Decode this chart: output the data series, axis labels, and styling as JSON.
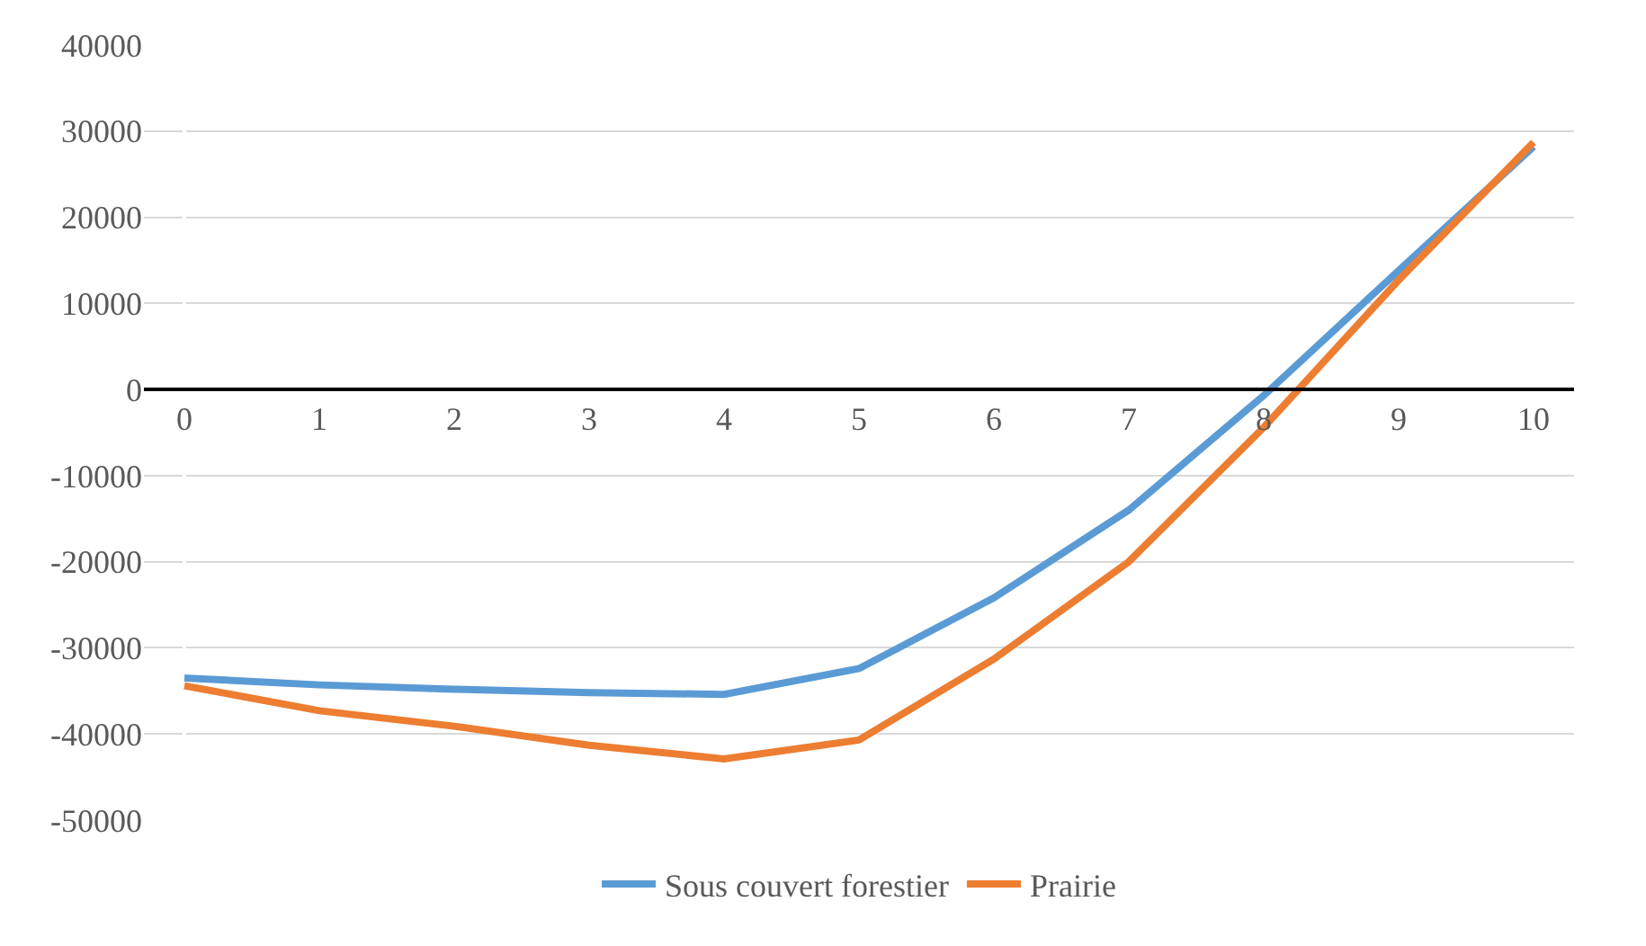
{
  "chart_data": {
    "type": "line",
    "categories": [
      "0",
      "1",
      "2",
      "3",
      "4",
      "5",
      "6",
      "7",
      "8",
      "9",
      "10"
    ],
    "series": [
      {
        "name": "Sous couvert forestier",
        "color": "#5b9bd5",
        "values": [
          -33500,
          -34300,
          -34800,
          -35200,
          -35400,
          -32400,
          -24200,
          -14000,
          -700,
          13800,
          28200
        ]
      },
      {
        "name": "Prairie",
        "color": "#ed7d31",
        "values": [
          -34400,
          -37300,
          -39100,
          -41300,
          -42900,
          -40700,
          -31300,
          -20000,
          -4400,
          12700,
          28700
        ]
      }
    ],
    "ylim": [
      -50000,
      40000
    ],
    "yticks": [
      -50000,
      -40000,
      -30000,
      -20000,
      -10000,
      0,
      10000,
      20000,
      30000,
      40000
    ],
    "grid": "y",
    "legend": "bottom",
    "marker": "none",
    "line_style": "solid"
  }
}
